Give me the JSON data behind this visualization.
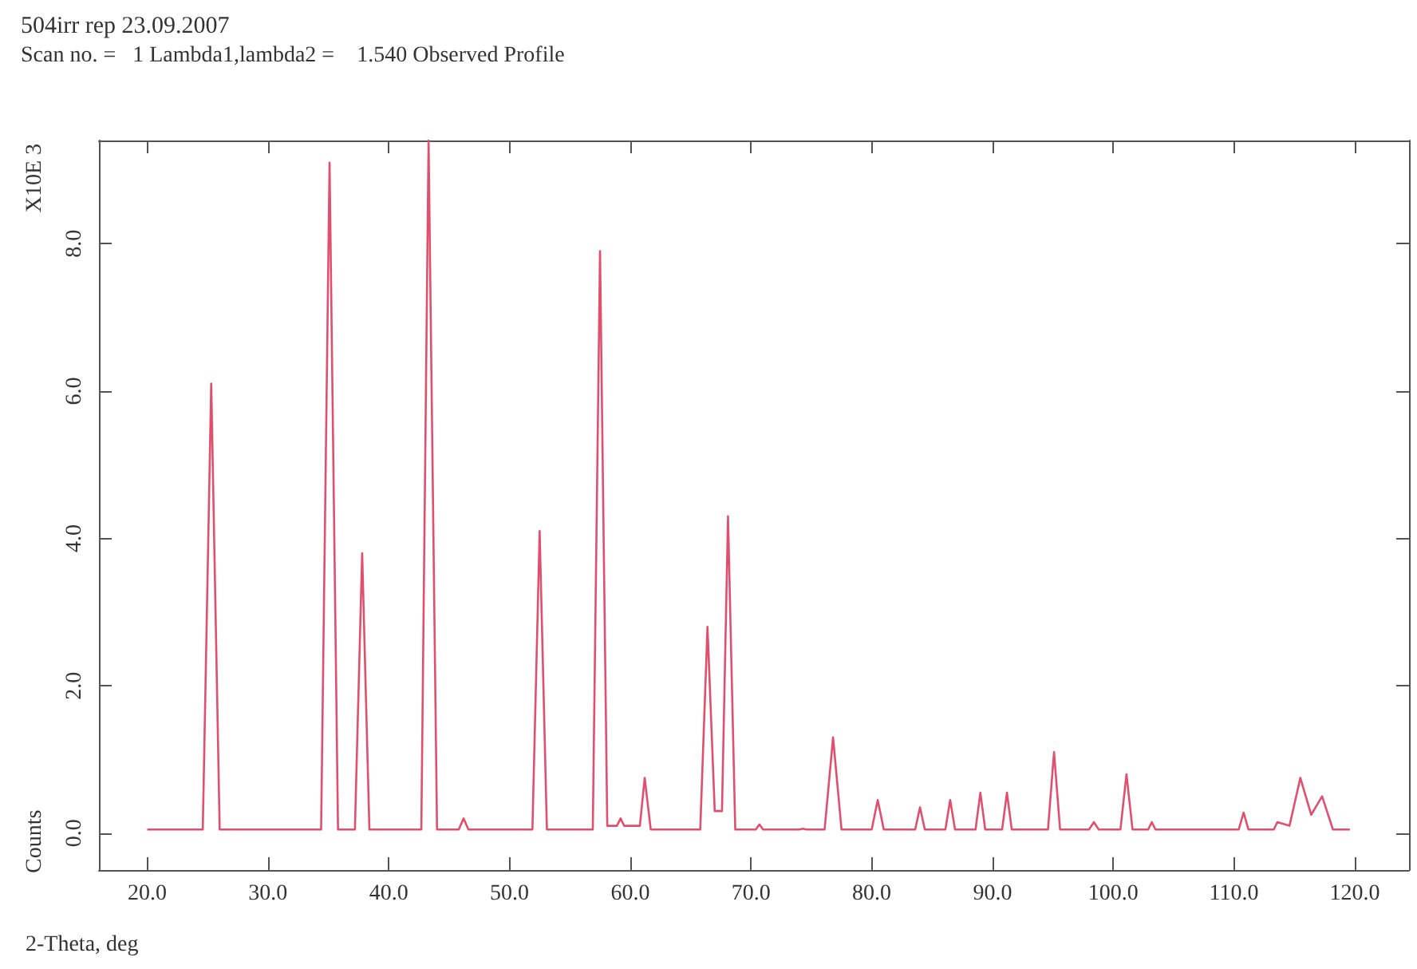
{
  "chart_data": {
    "type": "line",
    "title": "504irr rep 23.09.2007",
    "subtitle": "Scan no. =   1 Lambda1,lambda2 =    1.540 Observed Profile",
    "xlabel": "2-Theta, deg",
    "ylabel": "Counts",
    "annotations": [
      "X10E 3"
    ],
    "xlim": [
      16,
      124.5
    ],
    "ylim": [
      -0.5,
      9.4
    ],
    "xticks": [
      {
        "value": 20,
        "label": "20.0"
      },
      {
        "value": 30,
        "label": "30.0"
      },
      {
        "value": 40,
        "label": "40.0"
      },
      {
        "value": 50,
        "label": "50.0"
      },
      {
        "value": 60,
        "label": "60.0"
      },
      {
        "value": 70,
        "label": "70.0"
      },
      {
        "value": 80,
        "label": "80.0"
      },
      {
        "value": 90,
        "label": "90.0"
      },
      {
        "value": 100,
        "label": "100.0"
      },
      {
        "value": 110,
        "label": "110.0"
      },
      {
        "value": 120,
        "label": "120.0"
      }
    ],
    "yticks": [
      {
        "value": 0,
        "label": "0.0"
      },
      {
        "value": 2,
        "label": "2.0"
      },
      {
        "value": 4,
        "label": "4.0"
      },
      {
        "value": 6,
        "label": "6.0"
      },
      {
        "value": 8,
        "label": "8.0"
      }
    ],
    "grid": false,
    "marker": "none",
    "line_style": "solid",
    "series": [
      {
        "color": "#e0506e",
        "x": [
          20,
          24.6,
          25.3,
          26,
          34.4,
          35.1,
          35.8,
          37.2,
          37.8,
          38.4,
          42.7,
          43.3,
          44,
          45.8,
          46.2,
          46.6,
          51.9,
          52.5,
          53.1,
          56.9,
          57.5,
          58.1,
          58.9,
          59.2,
          59.5,
          60.8,
          61.2,
          61.7,
          65.8,
          66.4,
          67,
          67.6,
          68.1,
          68.7,
          70.4,
          70.7,
          71,
          74,
          74.3,
          74.6,
          76.1,
          76.8,
          77.5,
          80,
          80.5,
          81,
          83.6,
          84,
          84.4,
          86.1,
          86.5,
          86.9,
          88.6,
          89,
          89.4,
          90.8,
          91.2,
          91.6,
          94.6,
          95.1,
          95.6,
          98,
          98.4,
          98.8,
          100.6,
          101.1,
          101.6,
          102.9,
          103.2,
          103.5,
          110.4,
          110.8,
          111.2,
          113.3,
          113.6,
          114.6,
          115.5,
          116.4,
          117.3,
          118.2,
          119.6
        ],
        "values": [
          0.05,
          0.05,
          6.1,
          0.05,
          0.05,
          9.1,
          0.05,
          0.05,
          3.8,
          0.05,
          0.05,
          9.4,
          0.05,
          0.05,
          0.2,
          0.05,
          0.05,
          4.1,
          0.05,
          0.05,
          7.9,
          0.1,
          0.1,
          0.2,
          0.1,
          0.1,
          0.75,
          0.05,
          0.05,
          2.8,
          0.3,
          0.3,
          4.3,
          0.05,
          0.05,
          0.12,
          0.05,
          0.05,
          0.06,
          0.05,
          0.05,
          1.3,
          0.05,
          0.05,
          0.45,
          0.05,
          0.05,
          0.35,
          0.05,
          0.05,
          0.45,
          0.05,
          0.05,
          0.55,
          0.05,
          0.05,
          0.55,
          0.05,
          0.05,
          1.1,
          0.05,
          0.05,
          0.15,
          0.05,
          0.05,
          0.8,
          0.05,
          0.05,
          0.15,
          0.05,
          0.05,
          0.28,
          0.05,
          0.05,
          0.15,
          0.1,
          0.75,
          0.25,
          0.5,
          0.05,
          0.05
        ]
      }
    ]
  }
}
